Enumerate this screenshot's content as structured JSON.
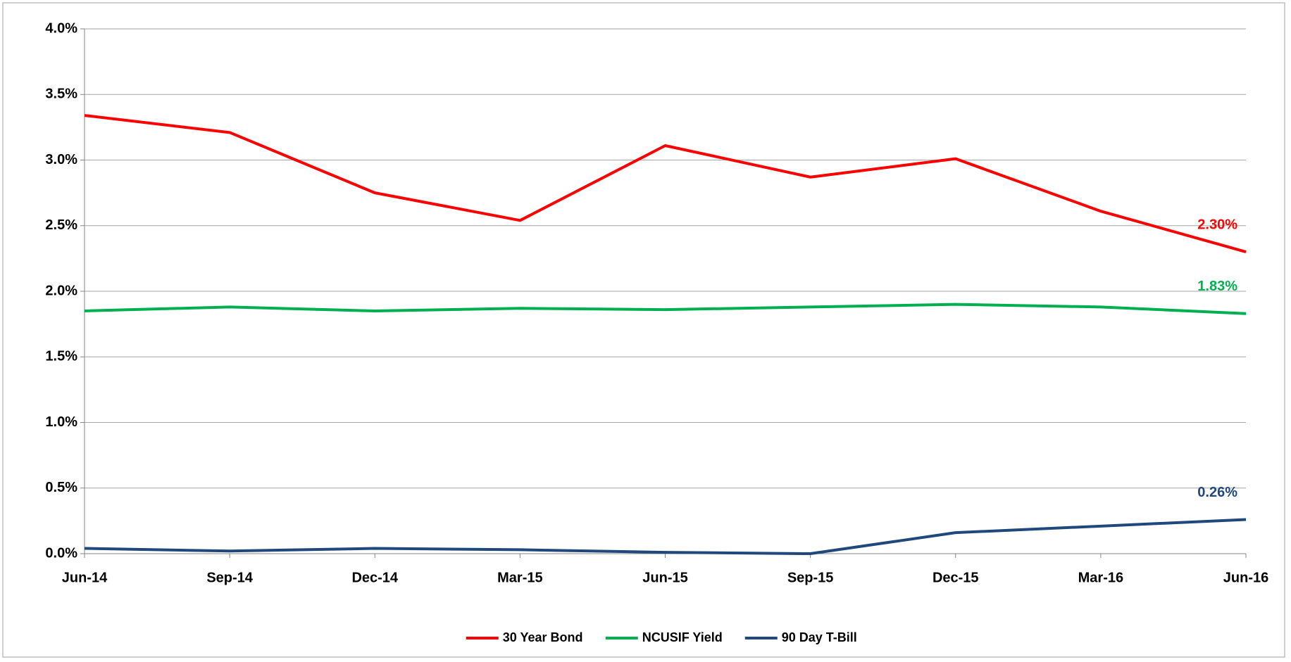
{
  "chart_data": {
    "type": "line",
    "categories": [
      "Jun-14",
      "Sep-14",
      "Dec-14",
      "Mar-15",
      "Jun-15",
      "Sep-15",
      "Dec-15",
      "Mar-16",
      "Jun-16"
    ],
    "series": [
      {
        "name": "30 Year Bond",
        "color": "#ff0000",
        "values": [
          3.34,
          3.21,
          2.75,
          2.54,
          3.11,
          2.87,
          3.01,
          2.61,
          2.3
        ],
        "value_labels": [
          null,
          null,
          null,
          null,
          null,
          null,
          null,
          null,
          "2.30%"
        ]
      },
      {
        "name": "NCUSIF Yield",
        "color": "#00b050",
        "values": [
          1.85,
          1.88,
          1.85,
          1.87,
          1.86,
          1.88,
          1.9,
          1.88,
          1.83
        ],
        "value_labels": [
          null,
          null,
          null,
          null,
          null,
          null,
          null,
          null,
          "1.83%"
        ]
      },
      {
        "name": "90 Day T-Bill",
        "color": "#1f497d",
        "values": [
          0.04,
          0.02,
          0.04,
          0.03,
          0.01,
          0.0,
          0.16,
          0.21,
          0.26
        ],
        "value_labels": [
          null,
          null,
          null,
          null,
          null,
          null,
          null,
          null,
          "0.26%"
        ]
      }
    ],
    "ylim": [
      0,
      4
    ],
    "yticks": [
      {
        "value": 0,
        "label": "0.0%"
      },
      {
        "value": 0.5,
        "label": "0.5%"
      },
      {
        "value": 1,
        "label": "1.0%"
      },
      {
        "value": 1.5,
        "label": "1.5%"
      },
      {
        "value": 2,
        "label": "2.0%"
      },
      {
        "value": 2.5,
        "label": "2.5%"
      },
      {
        "value": 3,
        "label": "3.0%"
      },
      {
        "value": 3.5,
        "label": "3.5%"
      },
      {
        "value": 4,
        "label": "4.0%"
      }
    ],
    "grid": true,
    "legend": "bottom"
  }
}
